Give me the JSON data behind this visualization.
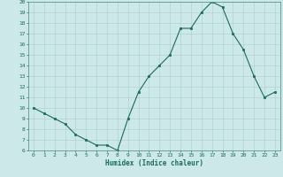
{
  "x": [
    0,
    1,
    2,
    3,
    4,
    5,
    6,
    7,
    8,
    9,
    10,
    11,
    12,
    13,
    14,
    15,
    16,
    17,
    18,
    19,
    20,
    21,
    22,
    23
  ],
  "y": [
    10,
    9.5,
    9,
    8.5,
    7.5,
    7,
    6.5,
    6.5,
    6,
    9,
    11.5,
    13,
    14,
    15,
    17.5,
    17.5,
    19,
    20,
    19.5,
    17,
    15.5,
    13,
    11,
    11.5
  ],
  "xlabel": "Humidex (Indice chaleur)",
  "ylim": [
    6,
    20
  ],
  "xlim": [
    -0.5,
    23.5
  ],
  "yticks": [
    6,
    7,
    8,
    9,
    10,
    11,
    12,
    13,
    14,
    15,
    16,
    17,
    18,
    19,
    20
  ],
  "xticks": [
    0,
    1,
    2,
    3,
    4,
    5,
    6,
    7,
    8,
    9,
    10,
    11,
    12,
    13,
    14,
    15,
    16,
    17,
    18,
    19,
    20,
    21,
    22,
    23
  ],
  "line_color": "#1a6b5a",
  "marker_color": "#1a6b5a",
  "bg_color": "#cce8e8",
  "grid_color": "#aacccc",
  "xlabel_color": "#1a6b5a",
  "tick_color": "#1a6b5a",
  "border_color": "#5a9a8a"
}
